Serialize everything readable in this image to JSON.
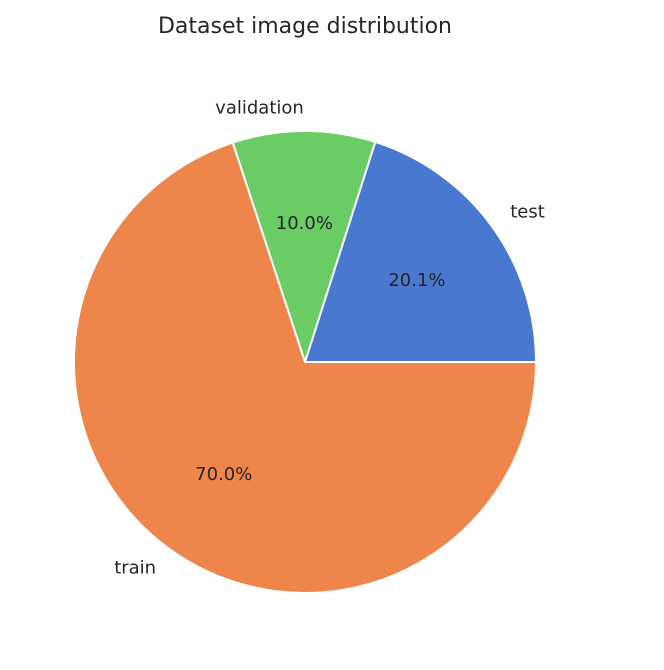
{
  "chart_data": {
    "type": "pie",
    "title": "Dataset image distribution",
    "start_angle_deg": 0,
    "direction": "counterclockwise",
    "slices": [
      {
        "label": "test",
        "value": 20.1,
        "pct_label": "20.1%",
        "color": "#4878d0"
      },
      {
        "label": "validation",
        "value": 10.0,
        "pct_label": "10.0%",
        "color": "#6acc64"
      },
      {
        "label": "train",
        "value": 70.0,
        "pct_label": "70.0%",
        "color": "#ee854a"
      }
    ],
    "edge_color": "#ffffff",
    "legend": "none"
  }
}
